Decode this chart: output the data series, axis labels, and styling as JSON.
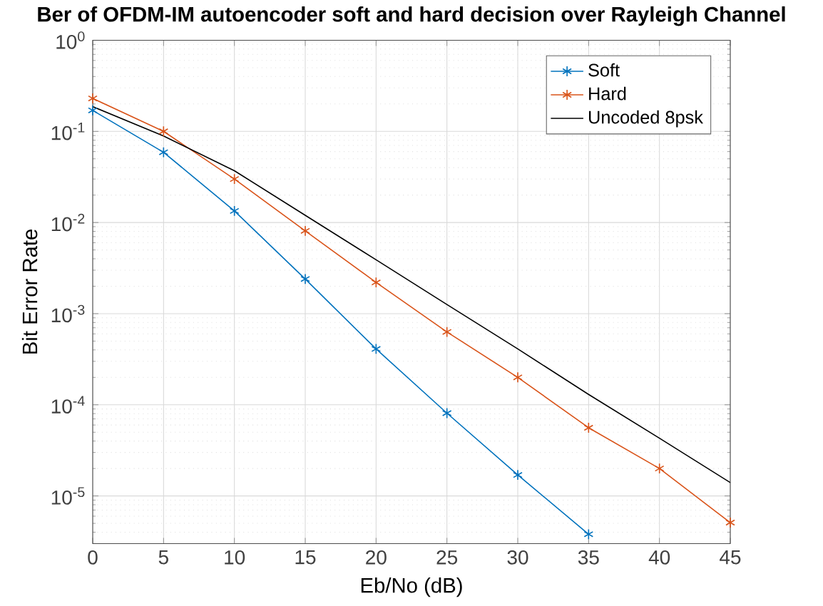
{
  "chart_data": {
    "type": "line",
    "title": "Ber of OFDM-IM autoencoder soft and hard decision over Rayleigh Channel",
    "xlabel": "Eb/No (dB)",
    "ylabel": "Bit Error Rate",
    "log": "y",
    "grid": true,
    "legend": "top right",
    "line_style": "solid",
    "xlim": [
      0,
      45
    ],
    "ylim": [
      3e-06,
      1
    ],
    "xticks": [
      0,
      5,
      10,
      15,
      20,
      25,
      30,
      35,
      40,
      45
    ],
    "yticks": [
      {
        "value": 1e-05,
        "label": "10$^{-5}$"
      },
      {
        "value": 0.0001,
        "label": "10$^{-4}$"
      },
      {
        "value": 0.001,
        "label": "10$^{-3}$"
      },
      {
        "value": 0.01,
        "label": "10$^{-2}$"
      },
      {
        "value": 0.1,
        "label": "10$^{-1}$"
      },
      {
        "value": 1,
        "label": "10$^{0}$"
      }
    ],
    "series": [
      {
        "name": "Soft",
        "color": "#0072bd",
        "marker": "cross",
        "x": [
          0,
          5,
          10,
          15,
          20,
          25,
          30,
          35
        ],
        "values": [
          0.17,
          0.059,
          0.0134,
          0.0024,
          0.00041,
          8.1e-05,
          1.7e-05,
          3.8e-06
        ]
      },
      {
        "name": "Hard",
        "color": "#d95319",
        "marker": "cross",
        "x": [
          0,
          5,
          10,
          15,
          20,
          25,
          30,
          35,
          40,
          45
        ],
        "values": [
          0.23,
          0.1,
          0.03,
          0.0081,
          0.0022,
          0.00063,
          0.0002,
          5.6e-05,
          2e-05,
          5.1e-06
        ]
      },
      {
        "name": "Uncoded 8psk",
        "color": "#000000",
        "marker": "none",
        "x": [
          0,
          5,
          10,
          15,
          20,
          25,
          30,
          35,
          40,
          45
        ],
        "values": [
          0.187,
          0.089,
          0.037,
          0.012,
          0.0039,
          0.00126,
          0.00041,
          0.00013,
          4.3e-05,
          1.4e-05
        ]
      }
    ]
  }
}
